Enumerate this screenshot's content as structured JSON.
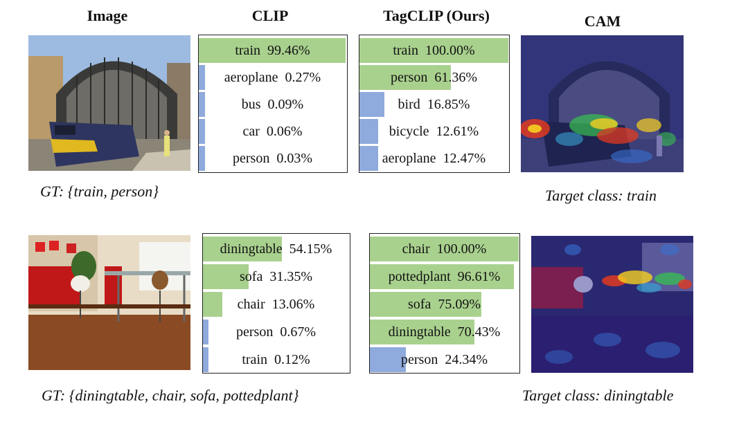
{
  "headers": {
    "image": "Image",
    "clip": "CLIP",
    "tagclip": "TagCLIP (Ours)",
    "cam": "CAM"
  },
  "rows": [
    {
      "gt": "GT: {train, person}",
      "target": "Target class: train",
      "clip": [
        {
          "label": "train",
          "value": "99.46%",
          "score": 99.46,
          "positive": true
        },
        {
          "label": "aeroplane",
          "value": "0.27%",
          "score": 0.27,
          "positive": false
        },
        {
          "label": "bus",
          "value": "0.09%",
          "score": 0.09,
          "positive": false
        },
        {
          "label": "car",
          "value": "0.06%",
          "score": 0.06,
          "positive": false
        },
        {
          "label": "person",
          "value": "0.03%",
          "score": 0.03,
          "positive": false
        }
      ],
      "tagclip": [
        {
          "label": "train",
          "value": "100.00%",
          "score": 100.0,
          "positive": true
        },
        {
          "label": "person",
          "value": "61.36%",
          "score": 61.36,
          "positive": true
        },
        {
          "label": "bird",
          "value": "16.85%",
          "score": 16.85,
          "positive": false
        },
        {
          "label": "bicycle",
          "value": "12.61%",
          "score": 12.61,
          "positive": false
        },
        {
          "label": "aeroplane",
          "value": "12.47%",
          "score": 12.47,
          "positive": false
        }
      ]
    },
    {
      "gt": "GT: {diningtable, chair, sofa, pottedplant}",
      "target": "Target class: diningtable",
      "clip": [
        {
          "label": "diningtable",
          "value": "54.15%",
          "score": 54.15,
          "positive": true
        },
        {
          "label": "sofa",
          "value": "31.35%",
          "score": 31.35,
          "positive": true
        },
        {
          "label": "chair",
          "value": "13.06%",
          "score": 13.06,
          "positive": true
        },
        {
          "label": "person",
          "value": "0.67%",
          "score": 0.67,
          "positive": false
        },
        {
          "label": "train",
          "value": "0.12%",
          "score": 0.12,
          "positive": false
        }
      ],
      "tagclip": [
        {
          "label": "chair",
          "value": "100.00%",
          "score": 100.0,
          "positive": true
        },
        {
          "label": "pottedplant",
          "value": "96.61%",
          "score": 96.61,
          "positive": true
        },
        {
          "label": "sofa",
          "value": "75.09%",
          "score": 75.09,
          "positive": true
        },
        {
          "label": "diningtable",
          "value": "70.43%",
          "score": 70.43,
          "positive": true
        },
        {
          "label": "person",
          "value": "24.34%",
          "score": 24.34,
          "positive": false
        }
      ]
    }
  ],
  "colors": {
    "positive_bar": "#a9d18e",
    "negative_bar": "#8faadc"
  }
}
